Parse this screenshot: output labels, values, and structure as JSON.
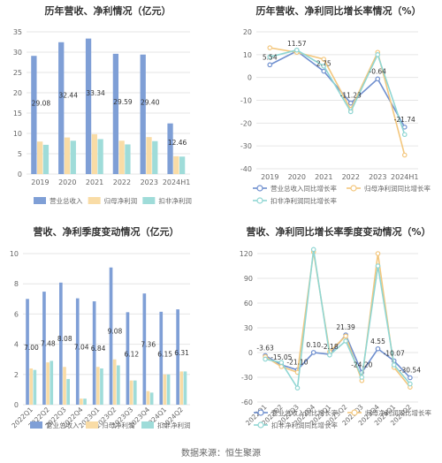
{
  "colors": {
    "revenue": "#7f9fd6",
    "parent_profit": "#f9dca6",
    "deducted_profit": "#9fdcd9",
    "grid": "#e6e6e6",
    "axis_text": "#666666",
    "title": "#333333"
  },
  "footer": "数据来源：恒生聚源",
  "chart_data": [
    {
      "id": "annual_values",
      "type": "bar",
      "title": "历年营收、净利情况（亿元）",
      "categories": [
        "2019",
        "2020",
        "2021",
        "2022",
        "2023",
        "2024H1"
      ],
      "series": [
        {
          "name": "营业总收入",
          "values": [
            29.08,
            32.44,
            33.34,
            29.59,
            29.4,
            12.46
          ]
        },
        {
          "name": "归母净利润",
          "values": [
            8.0,
            9.0,
            9.8,
            8.2,
            9.1,
            4.4
          ]
        },
        {
          "name": "扣非净利润",
          "values": [
            7.2,
            8.2,
            8.6,
            7.3,
            8.1,
            4.3
          ]
        }
      ],
      "data_labels": [
        "29.08",
        "32.44",
        "33.34",
        "29.59",
        "29.40",
        "12.46"
      ],
      "ylim": [
        0,
        35
      ],
      "yticks": [
        0,
        5,
        10,
        15,
        20,
        25,
        30,
        35
      ],
      "grid": true,
      "legend_position": "bottom"
    },
    {
      "id": "annual_growth",
      "type": "line",
      "title": "历年营收、净利同比增长率情况（%）",
      "categories": [
        "2019",
        "2020",
        "2021",
        "2022",
        "2023",
        "2024H1"
      ],
      "series": [
        {
          "name": "营业总收入同比增长率",
          "values": [
            5.54,
            11.57,
            2.75,
            -11.23,
            -0.64,
            -21.74
          ]
        },
        {
          "name": "归母净利润同比增长率",
          "values": [
            13.0,
            11.0,
            8.0,
            -14.0,
            11.0,
            -34.0
          ]
        },
        {
          "name": "扣非净利润同比增长率",
          "values": [
            9.0,
            12.0,
            5.0,
            -15.0,
            10.0,
            -25.0
          ]
        }
      ],
      "data_labels": [
        "5.54",
        "11.57",
        "2.75",
        "-11.23",
        "-0.64",
        "-21.74"
      ],
      "ylim": [
        -40,
        20
      ],
      "yticks": [
        -40,
        -30,
        -20,
        -10,
        0,
        10,
        20
      ],
      "grid": true,
      "legend_position": "bottom"
    },
    {
      "id": "quarterly_values",
      "type": "bar",
      "title": "营收、净利季度变动情况（亿元）",
      "categories": [
        "2022Q1",
        "2022Q2",
        "2022Q3",
        "2022Q4",
        "2023Q1",
        "2023Q2",
        "2023Q3",
        "2023Q4",
        "2024Q1",
        "2024Q2"
      ],
      "series": [
        {
          "name": "营业总收入",
          "values": [
            7.0,
            7.48,
            8.08,
            7.04,
            6.84,
            9.08,
            6.12,
            7.36,
            6.15,
            6.31
          ]
        },
        {
          "name": "归母净利润",
          "values": [
            2.4,
            2.8,
            2.5,
            0.4,
            2.5,
            3.0,
            1.6,
            0.9,
            2.0,
            2.2
          ]
        },
        {
          "name": "扣非净利润",
          "values": [
            2.3,
            2.9,
            1.7,
            0.4,
            2.4,
            2.6,
            1.6,
            0.8,
            2.0,
            2.2
          ]
        }
      ],
      "data_labels": [
        "7.00",
        "7.48",
        "8.08",
        "7.04",
        "6.84",
        "9.08",
        "6.12",
        "7.36",
        "6.15",
        "6.31"
      ],
      "ylim": [
        0,
        10
      ],
      "yticks": [
        0,
        2,
        4,
        6,
        8,
        10
      ],
      "grid": true,
      "legend_position": "bottom"
    },
    {
      "id": "quarterly_growth",
      "type": "line",
      "title": "营收、净利同比增长率季度变动情况（%）",
      "categories": [
        "2022Q1",
        "2022Q2",
        "2022Q3",
        "2022Q4",
        "2023Q1",
        "2023Q2",
        "2023Q3",
        "2023Q4",
        "2024Q1",
        "2024Q2"
      ],
      "series": [
        {
          "name": "营业总收入同比增长率",
          "values": [
            -3.63,
            -15.05,
            -21.1,
            0.1,
            -2.18,
            21.39,
            -24.2,
            4.55,
            -10.07,
            -30.54
          ]
        },
        {
          "name": "归母净利润同比增长率",
          "values": [
            -5.0,
            -17.0,
            -24.0,
            122.0,
            1.0,
            20.0,
            -34.0,
            120.0,
            -18.0,
            -42.0
          ]
        },
        {
          "name": "扣非净利润同比增长率",
          "values": [
            -8.0,
            -12.0,
            -43.0,
            125.0,
            -3.0,
            14.0,
            -30.0,
            105.0,
            -15.0,
            -38.0
          ]
        }
      ],
      "data_labels": [
        "-3.63",
        "-15.05",
        "-21.10",
        "0.10",
        "-2.18",
        "21.39",
        "-24.20",
        "4.55",
        "-10.07",
        "-30.54"
      ],
      "ylim": [
        -60,
        120
      ],
      "yticks": [
        -60,
        -30,
        0,
        30,
        60,
        90,
        120
      ],
      "grid": true,
      "legend_position": "bottom"
    }
  ]
}
